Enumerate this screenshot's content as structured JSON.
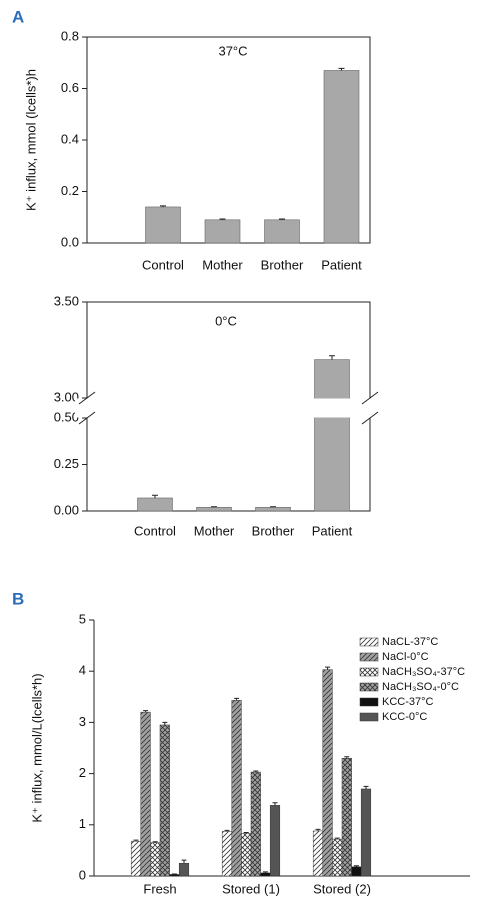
{
  "chart_data": [
    {
      "type": "bar",
      "panel": "A",
      "annotation": "37°C",
      "ylabel": "K⁺ influx, mmol (lcells*)h",
      "categories": [
        "Control",
        "Mother",
        "Brother",
        "Patient"
      ],
      "values": [
        0.14,
        0.09,
        0.09,
        0.67
      ],
      "errors": [
        0.004,
        0.003,
        0.003,
        0.008
      ],
      "color": "#a8a8a8",
      "ylim": [
        0,
        0.8
      ],
      "yticks": [
        {
          "value": 0,
          "label": "0.0"
        },
        0.2,
        0.4,
        0.6,
        0.8
      ]
    },
    {
      "type": "bar",
      "annotation": "0°C",
      "categories": [
        "Control",
        "Mother",
        "Brother",
        "Patient"
      ],
      "values": [
        0.07,
        0.02,
        0.02,
        3.2
      ],
      "errors": [
        0.015,
        0.003,
        0.003,
        0.02
      ],
      "color": "#a8a8a8",
      "ylim": [
        0,
        0.5
      ],
      "ylim_upper": [
        3.0,
        3.5
      ],
      "axis_break": true,
      "yticks": [
        {
          "value": 0,
          "label": "0.00"
        },
        0.25,
        {
          "value": 0.5,
          "label": "0.50"
        },
        {
          "value": 3,
          "label": "3.00"
        },
        {
          "value": 3.5,
          "label": "3.50"
        }
      ]
    },
    {
      "type": "grouped_bar",
      "panel": "B",
      "ylabel": "K⁺ influx, mmol/L(lcells*h)",
      "categories": [
        "Fresh",
        "Stored (1)",
        "Stored (2)"
      ],
      "series": [
        {
          "name": "NaCL-37°C",
          "pattern": "hatch",
          "color": "#ffffff",
          "values": [
            0.68,
            0.87,
            0.88
          ],
          "errors": [
            0.02,
            0.02,
            0.03
          ]
        },
        {
          "name": "NaCl-0°C",
          "pattern": "hatch",
          "color": "#a0a0a0",
          "values": [
            3.2,
            3.43,
            4.03
          ],
          "errors": [
            0.03,
            0.04,
            0.05
          ]
        },
        {
          "name": "NaCH₃SO₄-37°C",
          "pattern": "cross",
          "color": "#ffffff",
          "values": [
            0.65,
            0.83,
            0.72
          ],
          "errors": [
            0.02,
            0.02,
            0.02
          ]
        },
        {
          "name": "NaCH₃SO₄-0°C",
          "pattern": "cross",
          "color": "#a0a0a0",
          "values": [
            2.95,
            2.03,
            2.3
          ],
          "errors": [
            0.05,
            0.02,
            0.03
          ]
        },
        {
          "name": "KCC-37°C",
          "pattern": "solid",
          "color": "#111111",
          "values": [
            0.03,
            0.06,
            0.18
          ],
          "errors": [
            0.01,
            0.02,
            0.02
          ]
        },
        {
          "name": "KCC-0°C",
          "pattern": "solid",
          "color": "#555555",
          "values": [
            0.25,
            1.38,
            1.7
          ],
          "errors": [
            0.06,
            0.05,
            0.05
          ]
        }
      ],
      "ylim": [
        0,
        5
      ],
      "yticks": [
        0,
        1,
        2,
        3,
        4,
        5
      ],
      "legend": "top-right"
    }
  ]
}
